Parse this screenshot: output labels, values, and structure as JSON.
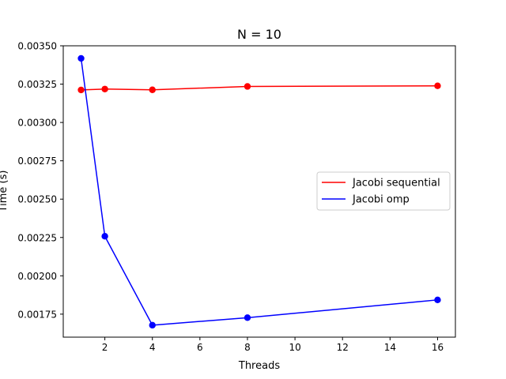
{
  "chart_data": {
    "type": "line",
    "title": "N = 10",
    "xlabel": "Threads",
    "ylabel": "Time (s)",
    "xlim": [
      0.25,
      16.75
    ],
    "ylim": [
      0.0016,
      0.0035
    ],
    "xticks": [
      2,
      4,
      6,
      8,
      10,
      12,
      14,
      16
    ],
    "xtick_labels": [
      "2",
      "4",
      "6",
      "8",
      "10",
      "12",
      "14",
      "16"
    ],
    "yticks": [
      0.00175,
      0.002,
      0.00225,
      0.0025,
      0.00275,
      0.003,
      0.00325,
      0.0035
    ],
    "ytick_labels": [
      "0.00175",
      "0.00200",
      "0.00225",
      "0.00250",
      "0.00275",
      "0.00300",
      "0.00325",
      "0.00350"
    ],
    "grid": false,
    "legend_position": "center-right",
    "series": [
      {
        "name": "Jacobi sequential",
        "color": "#ff0000",
        "marker": "circle",
        "x": [
          1,
          2,
          4,
          8,
          16
        ],
        "y": [
          0.003212,
          0.003218,
          0.003213,
          0.003235,
          0.003239
        ]
      },
      {
        "name": "Jacobi omp",
        "color": "#0000ff",
        "marker": "circle",
        "x": [
          1,
          2,
          4,
          8,
          16
        ],
        "y": [
          0.003418,
          0.002258,
          0.001678,
          0.001727,
          0.001843
        ]
      }
    ]
  }
}
